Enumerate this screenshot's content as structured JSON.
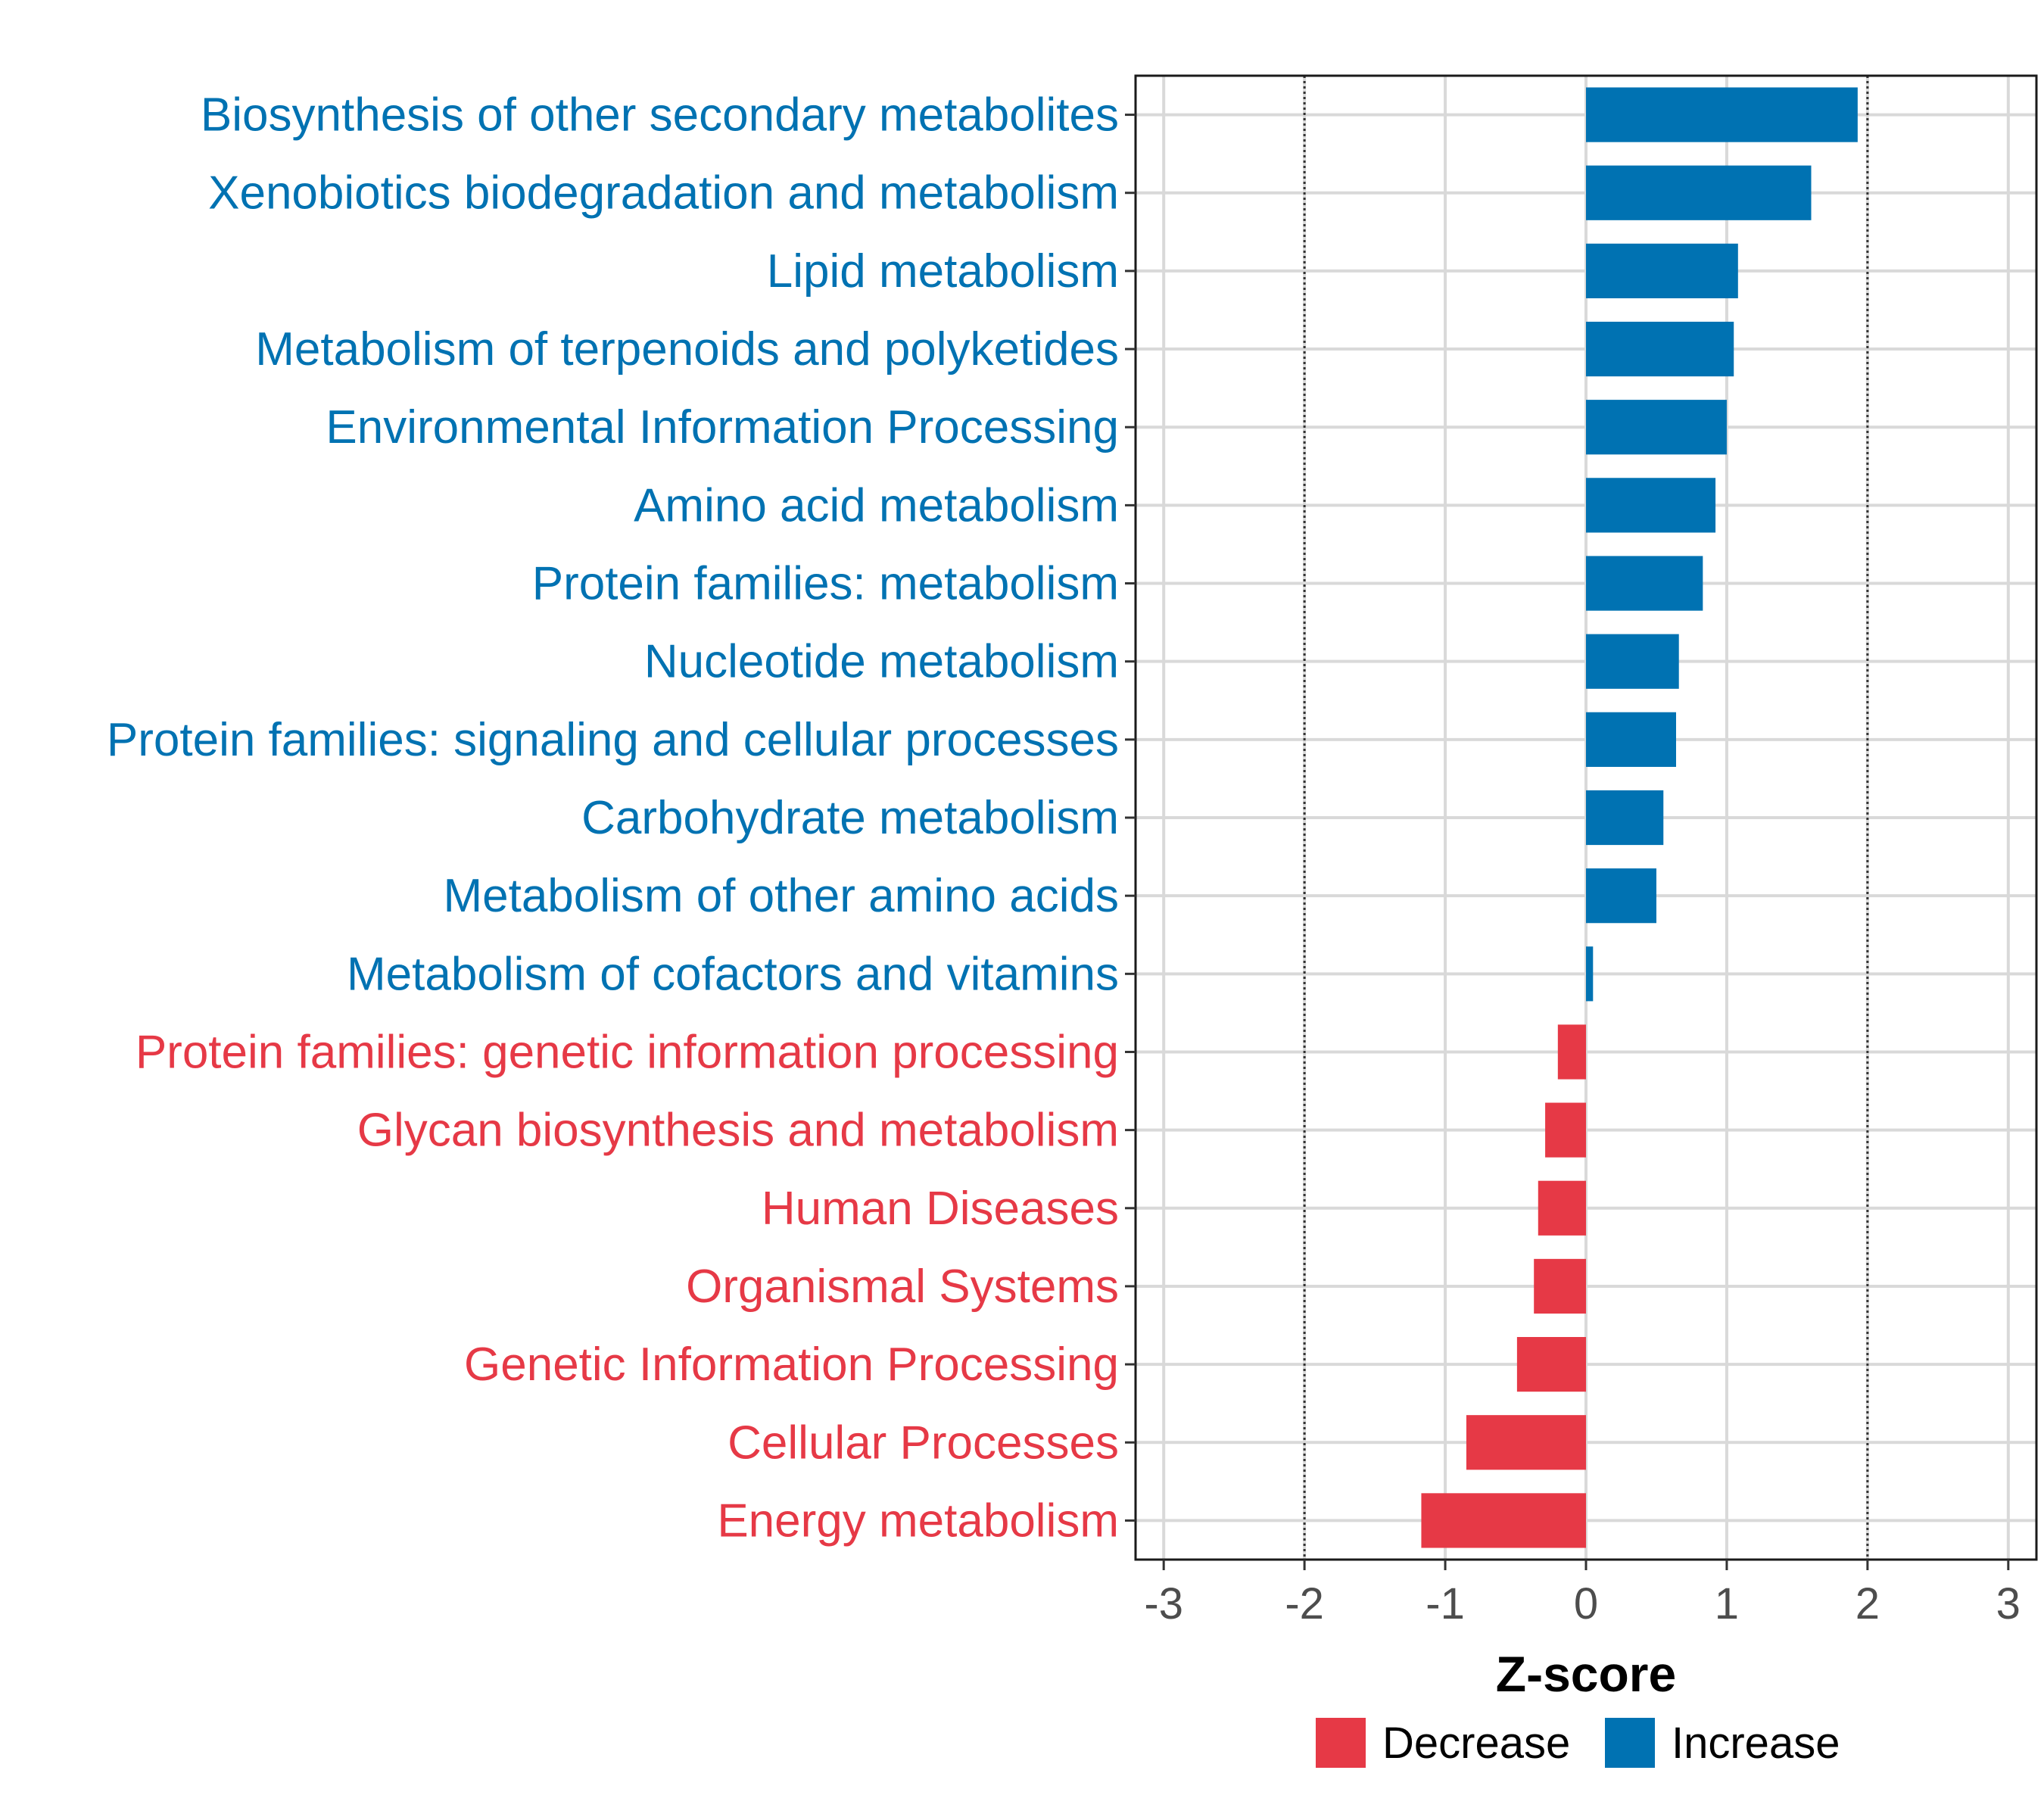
{
  "chart_data": {
    "type": "bar",
    "orientation": "horizontal",
    "xlabel": "Z-score",
    "xlim": [
      -3.2,
      3.2
    ],
    "xticks": [
      -3,
      -2,
      -1,
      0,
      1,
      2,
      3
    ],
    "xtick_labels": [
      "-3",
      "-2",
      "-1",
      "0",
      "1",
      "2",
      "3"
    ],
    "reference_lines": [
      -2,
      2
    ],
    "grid": true,
    "legend_position": "bottom",
    "colors": {
      "Increase": "#0072b2",
      "Decrease": "#e63946"
    },
    "legend": [
      {
        "name": "Decrease",
        "color": "#e63946"
      },
      {
        "name": "Increase",
        "color": "#0072b2"
      }
    ],
    "categories": [
      "Biosynthesis of other secondary metabolites",
      "Xenobiotics biodegradation and metabolism",
      "Lipid metabolism",
      "Metabolism of terpenoids and polyketides",
      "Environmental Information Processing",
      "Amino acid metabolism",
      "Protein families: metabolism",
      "Nucleotide metabolism",
      "Protein families: signaling and cellular processes",
      "Carbohydrate metabolism",
      "Metabolism of other amino acids",
      "Metabolism of cofactors and vitamins",
      "Protein families: genetic information processing",
      "Glycan biosynthesis and metabolism",
      "Human Diseases",
      "Organismal Systems",
      "Genetic Information Processing",
      "Cellular Processes",
      "Energy metabolism"
    ],
    "values": [
      1.93,
      1.6,
      1.08,
      1.05,
      1.0,
      0.92,
      0.83,
      0.66,
      0.64,
      0.55,
      0.5,
      0.05,
      -0.2,
      -0.29,
      -0.34,
      -0.37,
      -0.49,
      -0.85,
      -1.17
    ],
    "groups": [
      "Increase",
      "Increase",
      "Increase",
      "Increase",
      "Increase",
      "Increase",
      "Increase",
      "Increase",
      "Increase",
      "Increase",
      "Increase",
      "Increase",
      "Decrease",
      "Decrease",
      "Decrease",
      "Decrease",
      "Decrease",
      "Decrease",
      "Decrease"
    ]
  }
}
